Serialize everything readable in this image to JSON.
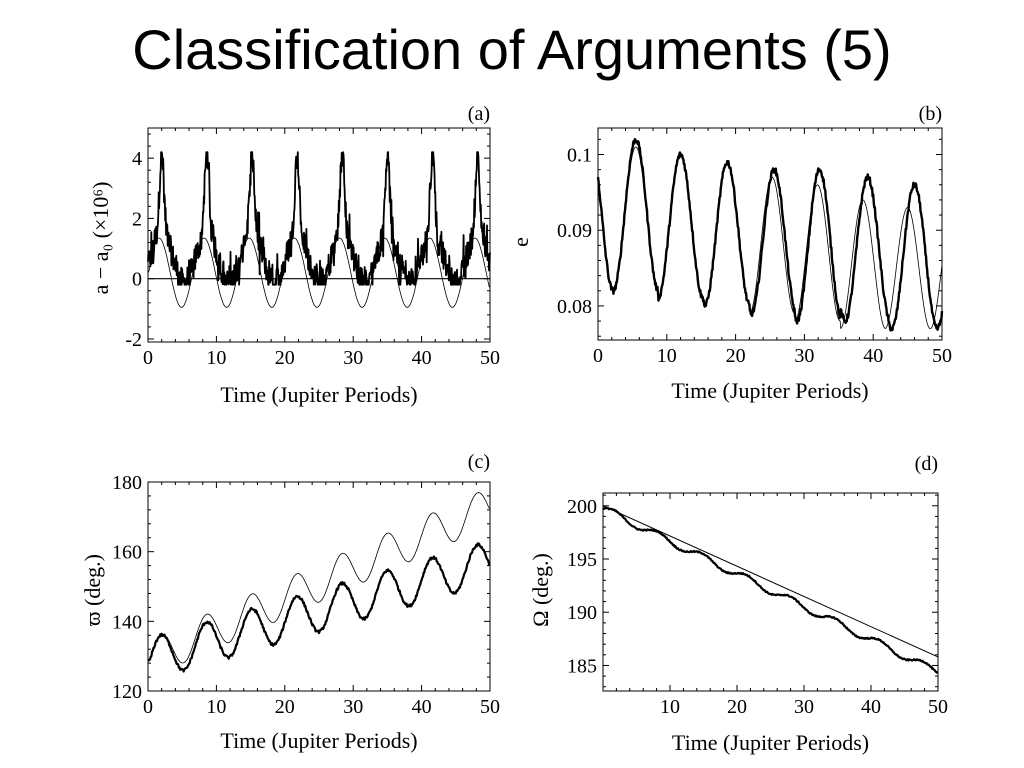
{
  "slide": {
    "title": "Classification of Arguments (5)"
  },
  "chart_data": [
    {
      "id": "a",
      "type": "line",
      "panel_label": "(a)",
      "xlabel": "Time (Jupiter Periods)",
      "ylabel": "a − a₀ (×10⁶)",
      "xlim": [
        0,
        50
      ],
      "ylim": [
        -2.1,
        5.0
      ],
      "xticks": [
        0,
        10,
        20,
        30,
        40,
        50
      ],
      "yticks": [
        -2,
        0,
        2,
        4
      ],
      "reference_line": 0,
      "series": [
        {
          "style": "thin",
          "period": 6.6,
          "mean": 0.2,
          "amplitude": 1.15,
          "phase_t": 1.6
        },
        {
          "style": "thick-noisy",
          "period": 6.6,
          "mean": 0.7,
          "amplitude": 1.3,
          "peak_t": 2.0,
          "max": 4.2,
          "min": -0.2
        }
      ]
    },
    {
      "id": "b",
      "type": "line",
      "panel_label": "(b)",
      "xlabel": "Time (Jupiter Periods)",
      "ylabel": "e",
      "xlim": [
        0,
        50
      ],
      "ylim": [
        0.0755,
        0.1035
      ],
      "xticks": [
        0,
        10,
        20,
        30,
        40,
        50
      ],
      "yticks": [
        0.08,
        0.09,
        0.1
      ],
      "series": [
        {
          "style": "thin",
          "period": 6.6,
          "peak_t": [
            5.5,
            12.0,
            18.8,
            25.3,
            31.9,
            38.5,
            45.0
          ],
          "peak_values": [
            0.101,
            0.1,
            0.099,
            0.097,
            0.096,
            0.094,
            0.093
          ],
          "trough_values": [
            0.084,
            0.082,
            0.081,
            0.08,
            0.079,
            0.078,
            0.077,
            0.077
          ]
        },
        {
          "style": "thick",
          "period": 6.6,
          "peak_t": [
            5.5,
            12.0,
            18.8,
            25.6,
            32.2,
            39.2,
            46.0
          ],
          "peak_values": [
            0.102,
            0.1,
            0.099,
            0.098,
            0.098,
            0.097,
            0.096
          ],
          "trough_values": [
            0.084,
            0.082,
            0.081,
            0.08,
            0.079,
            0.078,
            0.078,
            0.077
          ]
        }
      ]
    },
    {
      "id": "c",
      "type": "line",
      "panel_label": "(c)",
      "xlabel": "Time (Jupiter Periods)",
      "ylabel": "ϖ (deg.)",
      "xlim": [
        0,
        50
      ],
      "ylim": [
        120,
        180
      ],
      "xticks": [
        0,
        10,
        20,
        30,
        40,
        50
      ],
      "yticks": [
        120,
        140,
        160,
        180
      ],
      "series": [
        {
          "style": "thin",
          "start": 129,
          "end": 173,
          "amplitude": 5.5,
          "period": 6.6
        },
        {
          "style": "thick",
          "start": 129,
          "end": 157,
          "amplitude": 6,
          "period": 6.6
        }
      ]
    },
    {
      "id": "d",
      "type": "line",
      "panel_label": "(d)",
      "xlabel": "Time (Jupiter Periods)",
      "ylabel": "Ω (deg.)",
      "xlim": [
        0,
        50
      ],
      "ylim": [
        182.6,
        201.2
      ],
      "xticks": [
        10,
        20,
        30,
        40,
        50
      ],
      "yticks": [
        185,
        190,
        195,
        200
      ],
      "series": [
        {
          "style": "thin",
          "start": 200,
          "end": 185.8
        },
        {
          "style": "thick-stepped",
          "start": 200,
          "end": 184.6
        }
      ]
    }
  ]
}
